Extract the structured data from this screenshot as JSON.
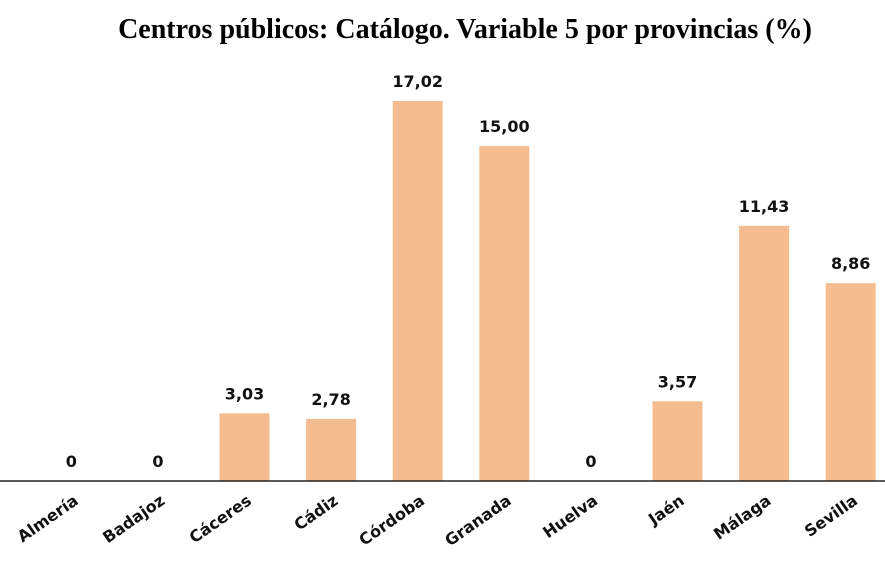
{
  "chart_data": {
    "type": "bar",
    "title": "Centros públicos: Catálogo. Variable 5 por provincias (%)",
    "categories": [
      "Almería",
      "Badajoz",
      "Cáceres",
      "Cádiz",
      "Córdoba",
      "Granada",
      "Huelva",
      "Jaén",
      "Málaga",
      "Sevilla"
    ],
    "values": [
      0,
      0,
      3.03,
      2.78,
      17.02,
      15.0,
      0,
      3.57,
      11.43,
      8.86
    ],
    "value_labels": [
      "0",
      "0",
      "3,03",
      "2,78",
      "17,02",
      "15,00",
      "0",
      "3,57",
      "11,43",
      "8,86"
    ],
    "color": "#f4bc8f"
  }
}
